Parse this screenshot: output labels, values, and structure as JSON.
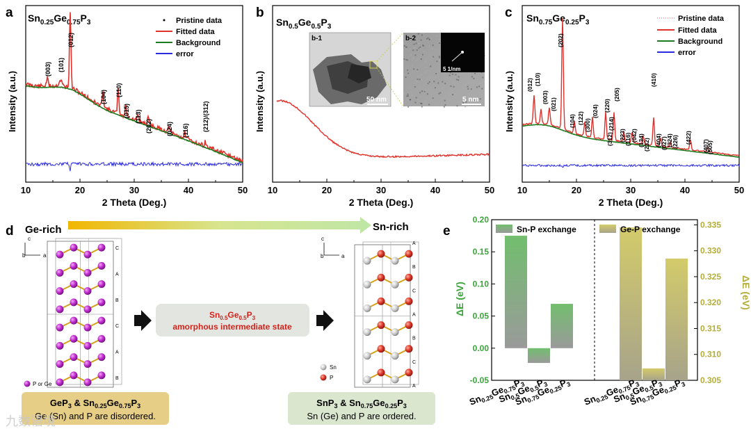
{
  "panel_labels": {
    "a": "a",
    "b": "b",
    "c": "c",
    "d": "d",
    "e": "e"
  },
  "panel_a": {
    "title_base": [
      "Sn",
      "Ge",
      "P"
    ],
    "title_subs": [
      "0.25",
      "0.75",
      "3"
    ],
    "legend": [
      "Pristine data",
      "Fitted data",
      "Background",
      "error"
    ],
    "peaks": [
      "(003)",
      "(101)",
      "(012)",
      "(104)",
      "(110)",
      "(015)",
      "(113)",
      "(202)",
      "(024)",
      "(116)",
      "(212)/(312)"
    ]
  },
  "panel_b": {
    "title_base": [
      "Sn",
      "Ge",
      "P"
    ],
    "title_subs": [
      "0.5",
      "0.5",
      "3"
    ],
    "inset1": "b-1",
    "inset2": "b-2",
    "scale1": "50 nm",
    "scale2": "5 nm",
    "saed": "5 1/nm"
  },
  "panel_c": {
    "title_base": [
      "Sn",
      "Ge",
      "P"
    ],
    "title_subs": [
      "0.75",
      "0.25",
      "3"
    ],
    "legend": [
      "Pristine data",
      "Fitted data",
      "Background",
      "error"
    ],
    "peaks": [
      "(012)",
      "(110)",
      "(003)",
      "(021)",
      "(202)",
      "(104)",
      "(122)",
      "(300)",
      "(024)",
      "(220)",
      "(214)",
      "(205)",
      "(312)",
      "(223)",
      "(116)",
      "(042)",
      "(134)",
      "(232)",
      "(410)",
      "(404)",
      "(027)",
      "(324)",
      "(226)",
      "(422)",
      "(407)",
      "(505)"
    ]
  },
  "xrd_axes": {
    "xlabel": "2 Theta (Deg.)",
    "ylabel": "Intensity (a.u.)",
    "xticks": [
      "10",
      "20",
      "30",
      "40",
      "50"
    ]
  },
  "panel_d": {
    "ge_rich": "Ge-rich",
    "sn_rich": "Sn-rich",
    "mid_formula_base": [
      "Sn",
      "Ge",
      "P"
    ],
    "mid_formula_subs": [
      "0.5",
      "0.5",
      "3"
    ],
    "mid_desc": "amorphous intermediate state",
    "left_caption_line1_parts": [
      "GeP",
      "3",
      " & Sn",
      "0.25",
      "Ge",
      "0.75",
      "P",
      "3"
    ],
    "left_caption_line2": "Ge (Sn) and P are disordered.",
    "right_caption_line1_parts": [
      "SnP",
      "3",
      " & Sn",
      "0.75",
      "Ge",
      "0.25",
      "P",
      "3"
    ],
    "right_caption_line2": "Sn (Ge) and P are ordered.",
    "left_legend": "P or Ge",
    "right_legend_sn": "Sn",
    "right_legend_p": "P",
    "axis_c": "c",
    "axis_b": "b",
    "axis_a": "a",
    "stack_left": [
      "C",
      "A",
      "B",
      "C",
      "A",
      "B"
    ],
    "stack_right": [
      "A",
      "B",
      "C",
      "A",
      "B",
      "C",
      "A"
    ]
  },
  "chart_data": [
    {
      "type": "bar",
      "title": "Sn-P exchange",
      "ylabel": "ΔE (eV)",
      "categories": [
        "Sn0.25Ge0.75P3",
        "Sn0.5Ge0.5P3",
        "Sn0.75Ge0.25P3"
      ],
      "values": [
        0.175,
        -0.023,
        0.069
      ],
      "ylim": [
        -0.05,
        0.2
      ],
      "yticks": [
        "-0.05",
        "0.00",
        "0.05",
        "0.10",
        "0.15",
        "0.20"
      ],
      "color": "#7dbb6e"
    },
    {
      "type": "bar",
      "title": "Ge-P exchange",
      "ylabel": "ΔE (eV)",
      "categories": [
        "Sn0.25Ge0.75P3",
        "Sn0.5Ge0.5P3",
        "Sn0.75Ge0.25P3"
      ],
      "values": [
        0.3345,
        0.3073,
        0.3285
      ],
      "ylim": [
        0.305,
        0.336
      ],
      "yticks": [
        "0.305",
        "0.310",
        "0.315",
        "0.320",
        "0.325",
        "0.330",
        "0.335"
      ],
      "color": "#c9c36a"
    }
  ],
  "panel_e_categories": {
    "base": [
      "Sn",
      "Ge",
      "P"
    ],
    "subs": [
      [
        "0.25",
        "0.75",
        "3"
      ],
      [
        "0.5",
        "0.5",
        "3"
      ],
      [
        "0.75",
        "0.25",
        "3"
      ]
    ]
  },
  "watermark": "九数语境"
}
